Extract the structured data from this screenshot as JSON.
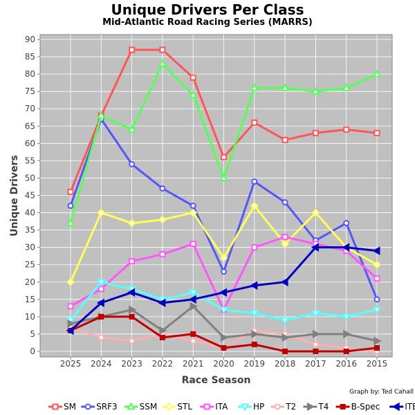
{
  "chart_data": {
    "type": "line",
    "title": "Unique Drivers Per Class",
    "subtitle": "Mid-Atlantic Road Racing Series (MARRS)",
    "xlabel": "Race Season",
    "ylabel": "Unique Drivers",
    "categories": [
      "2025",
      "2024",
      "2023",
      "2022",
      "2021",
      "2020",
      "2019",
      "2018",
      "2017",
      "2016",
      "2015"
    ],
    "ylim": [
      0,
      90
    ],
    "yticks": [
      0,
      5,
      10,
      15,
      20,
      25,
      30,
      35,
      40,
      45,
      50,
      55,
      60,
      65,
      70,
      75,
      80,
      85,
      90
    ],
    "grid": true,
    "legend_position": "bottom",
    "credit": "Graph by: Ted Cahall",
    "series": [
      {
        "name": "SM",
        "color": "#ff5555",
        "marker": "square",
        "values": [
          46,
          68,
          87,
          87,
          79,
          56,
          66,
          61,
          63,
          64,
          63
        ]
      },
      {
        "name": "SRF3",
        "color": "#5555ff",
        "marker": "circle",
        "values": [
          42,
          67,
          54,
          47,
          42,
          23,
          49,
          43,
          32,
          37,
          15
        ]
      },
      {
        "name": "SSM",
        "color": "#55ff55",
        "marker": "triangle-up",
        "values": [
          37,
          68,
          64,
          83,
          74,
          50,
          76,
          76,
          75,
          76,
          80
        ]
      },
      {
        "name": "STL",
        "color": "#ffff55",
        "marker": "diamond",
        "values": [
          20,
          40,
          37,
          38,
          40,
          27,
          42,
          31,
          40,
          30,
          25
        ]
      },
      {
        "name": "ITA",
        "color": "#ff55ff",
        "marker": "square",
        "values": [
          13,
          18,
          26,
          28,
          31,
          12,
          30,
          33,
          31,
          29,
          21
        ]
      },
      {
        "name": "HP",
        "color": "#55ffff",
        "marker": "triangle-down",
        "values": [
          9,
          20,
          18,
          15,
          17,
          12,
          11,
          9,
          11,
          10,
          12
        ]
      },
      {
        "name": "T2",
        "color": "#ffafaf",
        "marker": "circle",
        "values": [
          7,
          4,
          3,
          5,
          3,
          1,
          6,
          5,
          2,
          1,
          0
        ]
      },
      {
        "name": "T4",
        "color": "#808080",
        "marker": "triangle-right",
        "values": [
          8,
          10,
          12,
          6,
          13,
          4,
          5,
          4,
          5,
          5,
          3
        ]
      },
      {
        "name": "B-Spec",
        "color": "#c00000",
        "marker": "square",
        "values": [
          6,
          10,
          10,
          4,
          5,
          1,
          2,
          0,
          0,
          0,
          1
        ]
      },
      {
        "name": "ITB",
        "color": "#0000c0",
        "marker": "triangle-left",
        "values": [
          6,
          14,
          17,
          14,
          15,
          17,
          19,
          20,
          30,
          30,
          29
        ]
      }
    ]
  }
}
